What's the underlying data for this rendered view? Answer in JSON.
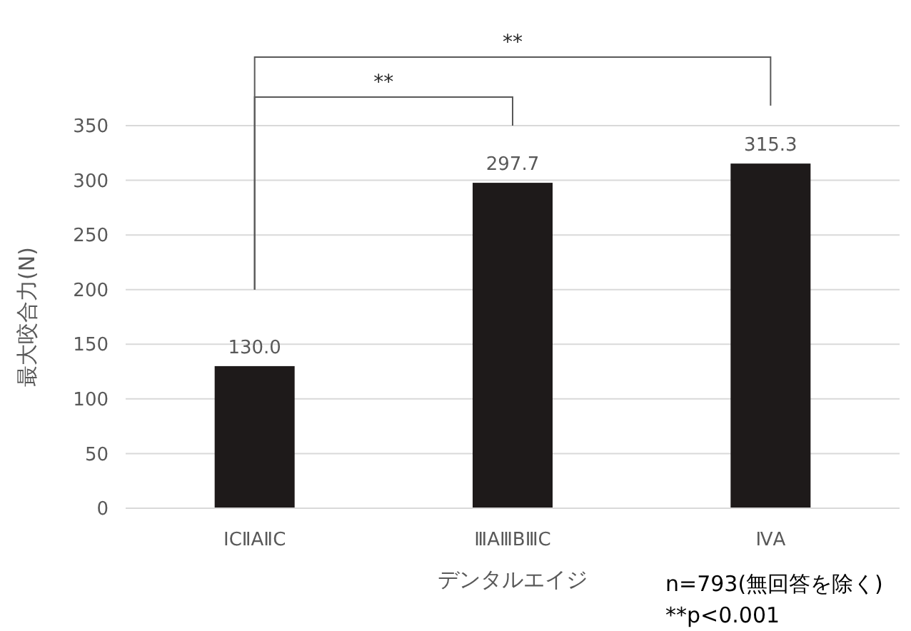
{
  "chart_data": {
    "type": "bar",
    "ylabel": "最大咬合力(N)",
    "xlabel": "デンタルエイジ",
    "categories": [
      "ⅠCⅡAⅡC",
      "ⅢAⅢBⅢC",
      "ⅣA"
    ],
    "values": [
      130.0,
      297.7,
      315.3
    ],
    "color": "#1e1a1a",
    "value_labels": [
      "130.0",
      "297.7",
      "315.3"
    ],
    "ylim": [
      0,
      350
    ],
    "yticks": [
      0,
      50,
      100,
      150,
      200,
      250,
      300,
      350
    ],
    "grid": "y",
    "annotations": [
      "**",
      "**",
      "n=793(無回答を除く)",
      "**p<0.001"
    ]
  }
}
